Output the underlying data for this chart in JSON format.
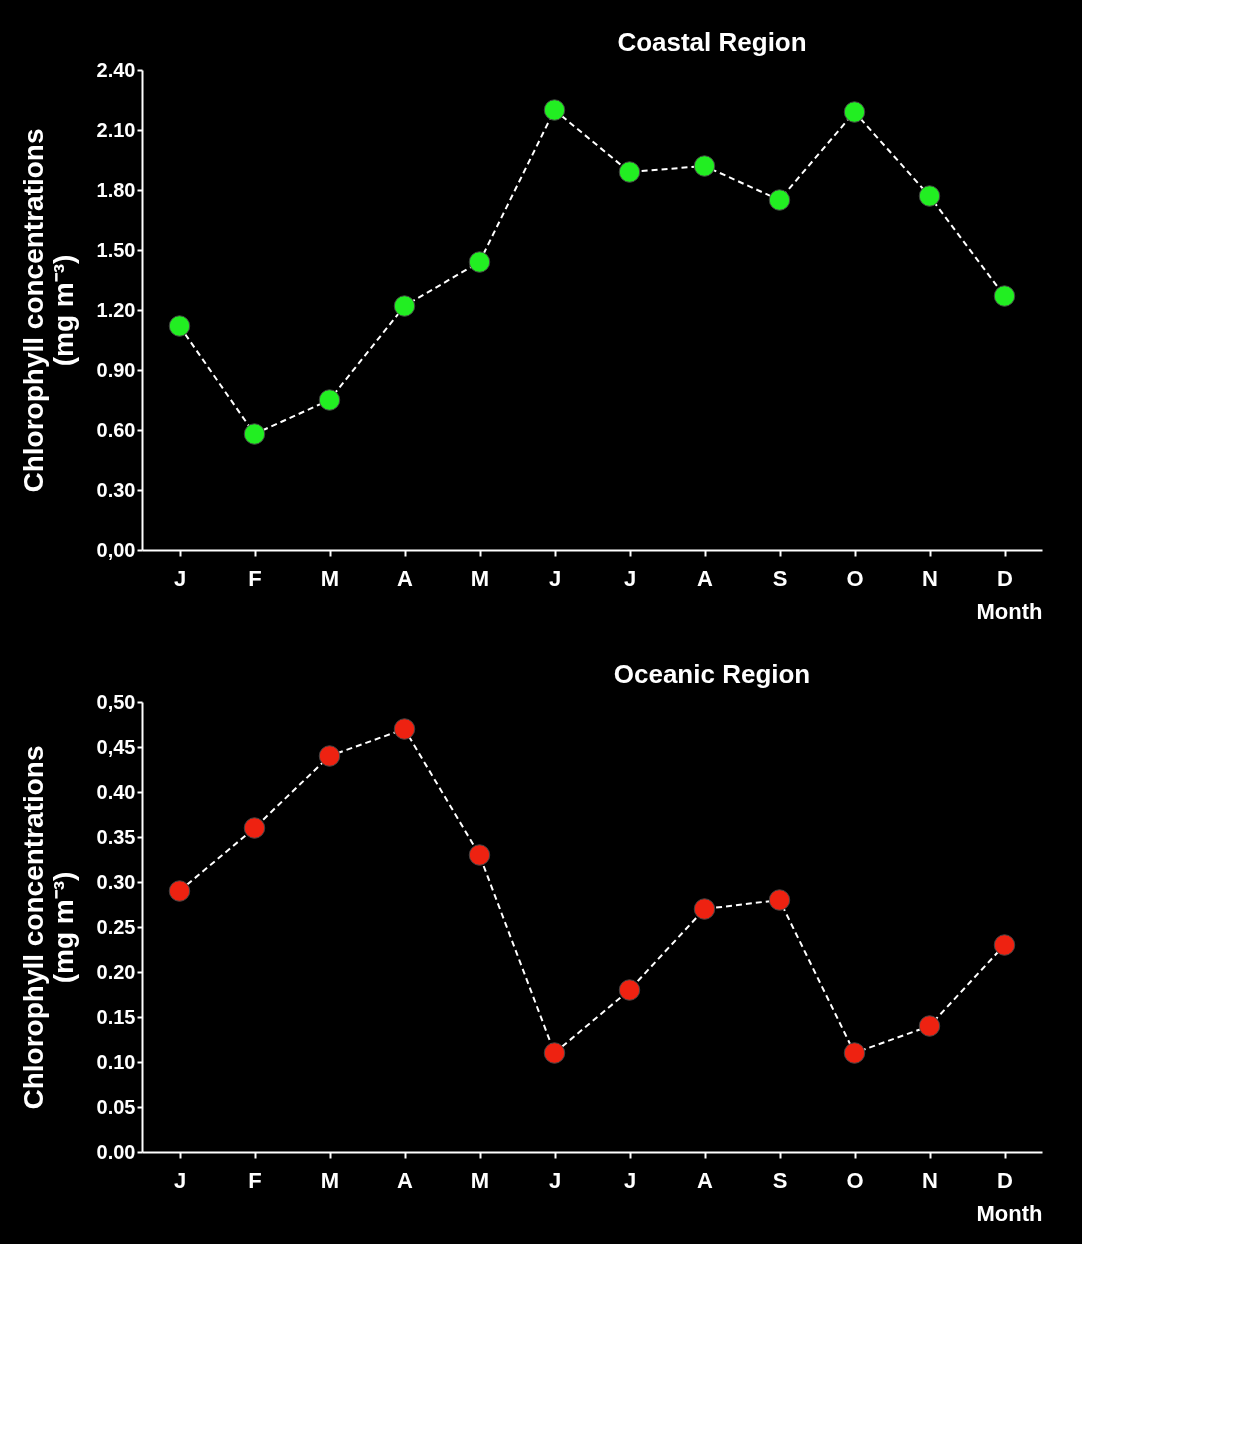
{
  "chart_data": [
    {
      "type": "line",
      "title": "Coastal Region",
      "xlabel": "Month",
      "ylabel": "Chlorophyll concentrations\n(mg m⁻³)",
      "categories": [
        "J",
        "F",
        "M",
        "A",
        "M",
        "J",
        "J",
        "A",
        "S",
        "O",
        "N",
        "D"
      ],
      "series": [
        {
          "color": "#22ee22",
          "values": [
            1.12,
            0.58,
            0.75,
            1.22,
            1.44,
            2.2,
            1.89,
            1.92,
            1.75,
            2.19,
            1.77,
            1.27
          ]
        }
      ],
      "ylim": [
        0,
        2.4
      ],
      "yticks": [
        {
          "value": 0,
          "label": "0,00"
        },
        {
          "value": 0.3,
          "label": "0.30"
        },
        {
          "value": 0.6,
          "label": "0.60"
        },
        {
          "value": 0.9,
          "label": "0.90"
        },
        {
          "value": 1.2,
          "label": "1.20"
        },
        {
          "value": 1.5,
          "label": "1.50"
        },
        {
          "value": 1.8,
          "label": "1.80"
        },
        {
          "value": 2.1,
          "label": "2.10"
        },
        {
          "value": 2.4,
          "label": "2.40"
        }
      ],
      "grid": false,
      "marker": "circle",
      "line_style": "dashed"
    },
    {
      "type": "line",
      "title": "Oceanic Region",
      "xlabel": "Month",
      "ylabel": "Chlorophyll concentrations\n(mg m⁻³)",
      "categories": [
        "J",
        "F",
        "M",
        "A",
        "M",
        "J",
        "J",
        "A",
        "S",
        "O",
        "N",
        "D"
      ],
      "series": [
        {
          "color": "#ee2211",
          "values": [
            0.29,
            0.36,
            0.44,
            0.47,
            0.33,
            0.11,
            0.18,
            0.27,
            0.28,
            0.11,
            0.14,
            0.23
          ]
        }
      ],
      "ylim": [
        0,
        0.5
      ],
      "yticks": [
        {
          "value": 0,
          "label": "0.00"
        },
        {
          "value": 0.05,
          "label": "0.05"
        },
        {
          "value": 0.1,
          "label": "0.10"
        },
        {
          "value": 0.15,
          "label": "0.15"
        },
        {
          "value": 0.2,
          "label": "0.20"
        },
        {
          "value": 0.25,
          "label": "0.25"
        },
        {
          "value": 0.3,
          "label": "0.30"
        },
        {
          "value": 0.35,
          "label": "0.35"
        },
        {
          "value": 0.4,
          "label": "0.40"
        },
        {
          "value": 0.45,
          "label": "0,45"
        },
        {
          "value": 0.5,
          "label": "0,50"
        }
      ],
      "grid": false,
      "marker": "circle",
      "line_style": "dashed"
    }
  ]
}
